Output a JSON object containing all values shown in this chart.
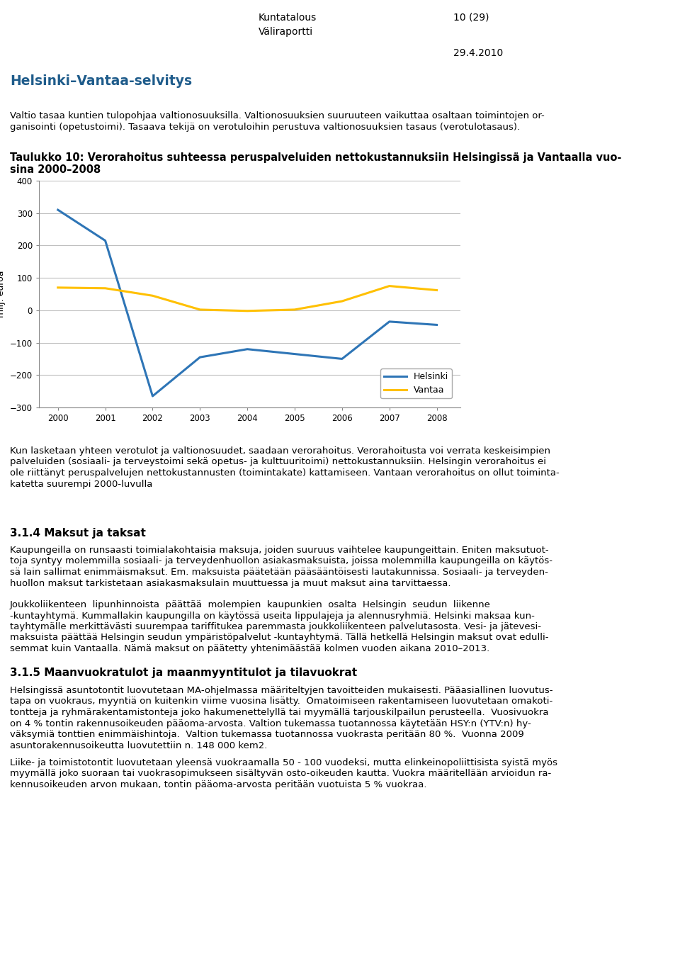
{
  "years": [
    2000,
    2001,
    2002,
    2003,
    2004,
    2005,
    2006,
    2007,
    2008
  ],
  "helsinki": [
    310,
    215,
    -265,
    -145,
    -120,
    -135,
    -150,
    -35,
    -45
  ],
  "vantaa": [
    70,
    68,
    45,
    2,
    -2,
    2,
    28,
    75,
    62
  ],
  "helsinki_color": "#2e75b6",
  "vantaa_color": "#ffc000",
  "ylabel": "milj. euroa",
  "ylim": [
    -300,
    400
  ],
  "yticks": [
    -300,
    -200,
    -100,
    0,
    100,
    200,
    300,
    400
  ],
  "legend_helsinki": "Helsinki",
  "legend_vantaa": "Vantaa",
  "line_width": 2.2,
  "header_blue_color": "#1f5c8b",
  "header_line_blue": "#2e75b6",
  "header_line_yellow": "#ffc000",
  "header_line_gray": "#a0a0a0",
  "grid_color": "#c0c0c0",
  "page_header1": "Kuntatalous",
  "page_header2": "10 (29)",
  "page_header3": "Väliraportti",
  "page_date": "29.4.2010",
  "section_title": "Helsinki–Vantaa-selvitys",
  "chart_title_line1": "Taulukko 10: Verorahoitus suhteessa peruspalveluiden nettokustannuksiin Helsingissä ja Vantaalla vuo-",
  "chart_title_line2": "sina 2000–2008",
  "body_text1_line1": "Valtio tasaa kuntien tulopohjaa valtionosuuksilla. Valtionosuuksien suuruuteen vaikuttaa osaltaan toimintojen or-",
  "body_text1_line2": "ganisointi (opetustoimi). Tasaava tekijä on verotuloihin perustuva valtionosuuksien tasaus (verotulotasaus).",
  "body_after_chart_line1": "Kun lasketaan yhteen verotulot ja valtionosuudet, saadaan verorahoitus. Verorahoitusta voi verrata keskeisimpien",
  "body_after_chart_line2": "palveluiden (sosiaali- ja terveystoimi sekä opetus- ja kulttuuritoimi) nettokustannuksiin. Helsingin verorahoitus ei",
  "body_after_chart_line3": "ole riittänyt peruspalvelujen nettokustannusten (toimintakate) kattamiseen. Vantaan verorahoitus on ollut toiminta-",
  "body_after_chart_line4": "katetta suurempi 2000-luvulla",
  "section_314": "3.1.4 Maksut ja taksat",
  "body_314a_line1": "Kaupungeilla on runsaasti toimialakohtaisia maksuja, joiden suuruus vaihtelee kaupungeittain. Eniten maksutuot-",
  "body_314a_line2": "toja syntyy molemmilla sosiaali- ja terveydenhuollon asiakasmaksuista, joissa molemmilla kaupungeilla on käytös-",
  "body_314a_line3": "sä lain sallimat enimmäismaksut. Em. maksuista päätetään pääsääntöisesti lautakunnissa. Sosiaali- ja terveyden-",
  "body_314a_line4": "huollon maksut tarkistetaan asiakasmaksulain muuttuessa ja muut maksut aina tarvittaessa.",
  "body_314b_line1": "Joukkoliikenteen  lipunhinnoista  päättää  molempien  kaupunkien  osalta  Helsingin  seudun  liikenne",
  "body_314b_line2": "-kuntayhtymä. Kummallakin kaupungilla on käytössä useita lippulajeja ja alennusryhmiä. Helsinki maksaa kun-",
  "body_314b_line3": "tayhtymälle merkittävästi suurempaa tariffitukea paremmasta joukkoliikenteen palvelutasosta. Vesi- ja jätevesi-",
  "body_314b_line4": "maksuista päättää Helsingin seudun ympäristöpalvelut -kuntayhtymä. Tällä hetkellä Helsingin maksut ovat edulli-",
  "body_314b_line5": "semmat kuin Vantaalla. Nämä maksut on päätetty yhtenimäästää kolmen vuoden aikana 2010–2013.",
  "section_315": "3.1.5 Maanvuokratulot ja maanmyyntitulot ja tilavuokrat",
  "body_315a_line1": "Helsingissä asuntotontit luovutetaan MA-ohjelmassa määriteltyjen tavoitteiden mukaisesti. Pääasiallinen luovutus-",
  "body_315a_line2": "tapa on vuokraus, myyntiä on kuitenkin viime vuosina lisätty.  Omatoimiseen rakentamiseen luovutetaan omakoti-",
  "body_315a_line3": "tontteja ja ryhmärakentamistonteja joko hakumenettelyllä tai myymällä tarjouskilpailun perusteella.  Vuosivuokra",
  "body_315a_line4": "on 4 % tontin rakennusoikeuden pääoma-arvosta. Valtion tukemassa tuotannossa käytetään HSY:n (YTV:n) hy-",
  "body_315a_line5": "väksymiä tonttien enimmäishintoja.  Valtion tukemassa tuotannossa vuokrasta peritään 80 %.  Vuonna 2009",
  "body_315a_line6": "asuntorakennusoikeutta luovutettiin n. 148 000 kem2.",
  "body_315b_line1": "Liike- ja toimistotontit luovutetaan yleensä vuokraamalla 50 - 100 vuodeksi, mutta elinkeinopoliittisista syistä myös",
  "body_315b_line2": "myymällä joko suoraan tai vuokrasopimukseen sisältyvän osto-oikeuden kautta. Vuokra määritellään arvioidun ra-",
  "body_315b_line3": "kennusoikeuden arvon mukaan, tontin pääoma-arvosta peritään vuotuista 5 % vuokraa."
}
